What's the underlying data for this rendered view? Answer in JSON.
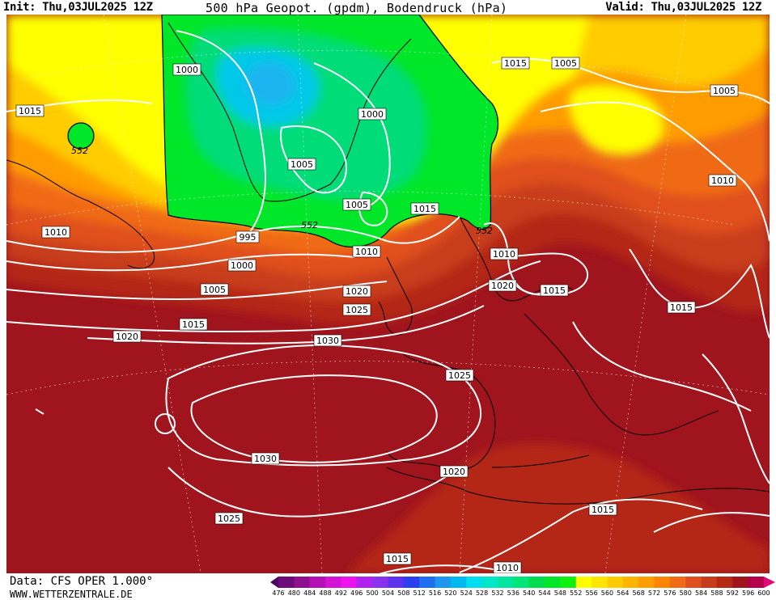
{
  "header": {
    "init": "Init: Thu,03JUL2025 12Z",
    "title": "500 hPa Geopot. (gpdm), Bodendruck (hPa)",
    "valid": "Valid: Thu,03JUL2025 12Z"
  },
  "footer": {
    "data_source": "Data: CFS OPER 1.000°",
    "website": "WWW.WETTERZENTRALE.DE"
  },
  "colorbar": {
    "unit": "gpdm",
    "levels": [
      "476",
      "480",
      "484",
      "488",
      "492",
      "496",
      "500",
      "504",
      "508",
      "512",
      "516",
      "520",
      "524",
      "528",
      "532",
      "536",
      "540",
      "544",
      "548",
      "552",
      "556",
      "560",
      "564",
      "568",
      "572",
      "576",
      "580",
      "584",
      "588",
      "592",
      "596",
      "600"
    ],
    "colors": [
      "#4b0066",
      "#6e0b7a",
      "#8f0f8f",
      "#b512b5",
      "#d413d4",
      "#ee12ee",
      "#b022ee",
      "#8a33ee",
      "#5d33ee",
      "#2a3ff0",
      "#1e6ff0",
      "#1e96f0",
      "#00b9f0",
      "#00dcf0",
      "#00e6c8",
      "#00e6a0",
      "#00e678",
      "#00dc50",
      "#00e628",
      "#10f010",
      "#ffff00",
      "#ffe600",
      "#ffcc00",
      "#ffb400",
      "#ff9c00",
      "#ff8400",
      "#f06a18",
      "#e0501e",
      "#c83c1e",
      "#b42814",
      "#a0141e",
      "#b4004b",
      "#dc0a78"
    ]
  },
  "map": {
    "fill_colors": {
      "low_552": "#00e628",
      "low_544": "#00dc78",
      "low_536": "#00c8e8",
      "low_532": "#1eb4f0",
      "band_556": "#ffff00",
      "band_564": "#ffcc00",
      "band_572": "#ff9c00",
      "band_580": "#f06a18",
      "band_584": "#e0501e",
      "band_588": "#c83c1e",
      "band_592": "#b42814",
      "band_596": "#a0141e"
    },
    "isobar_color": "#ffffff",
    "isobar_labels": [
      {
        "text": "1000"
      },
      {
        "text": "1015"
      },
      {
        "text": "1005"
      },
      {
        "text": "1005"
      },
      {
        "text": "1000"
      },
      {
        "text": "1005"
      },
      {
        "text": "1005"
      },
      {
        "text": "1015"
      },
      {
        "text": "1010"
      },
      {
        "text": "995"
      },
      {
        "text": "1010"
      },
      {
        "text": "1000"
      },
      {
        "text": "1010"
      },
      {
        "text": "1005"
      },
      {
        "text": "1020"
      },
      {
        "text": "1020"
      },
      {
        "text": "1025"
      },
      {
        "text": "1015"
      },
      {
        "text": "1015"
      },
      {
        "text": "1020"
      },
      {
        "text": "1030"
      },
      {
        "text": "1015"
      },
      {
        "text": "1025"
      },
      {
        "text": "1030"
      },
      {
        "text": "1020"
      },
      {
        "text": "1025"
      },
      {
        "text": "1015"
      },
      {
        "text": "1015"
      },
      {
        "text": "1010"
      },
      {
        "text": "1015"
      },
      {
        "text": "1010"
      }
    ],
    "geopot_labels": [
      {
        "text": "552"
      },
      {
        "text": "552"
      },
      {
        "text": "552"
      }
    ]
  }
}
